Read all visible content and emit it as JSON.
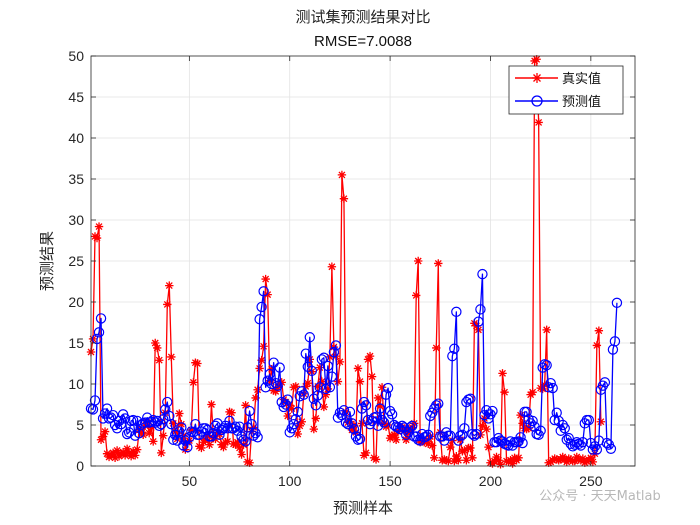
{
  "watermark": "公众号 · 天天Matlab",
  "chart_data": {
    "type": "line",
    "title": "测试集预测结果对比",
    "subtitle": "RMSE=7.0088",
    "xlabel": "预测样本",
    "ylabel": "预测结果",
    "xlim": [
      1,
      272
    ],
    "ylim": [
      0,
      50
    ],
    "xticks": [
      50,
      100,
      150,
      200,
      250
    ],
    "yticks": [
      0,
      5,
      10,
      15,
      20,
      25,
      30,
      35,
      40,
      45,
      50
    ],
    "grid": true,
    "legend_position": "top-right",
    "series": [
      {
        "name": "真实值",
        "color": "#ff0000",
        "marker": "asterisk",
        "values": [
          13.9,
          15.5,
          28,
          27.8,
          29.2,
          3.2,
          3.6,
          4.2,
          1.5,
          1.1,
          1.3,
          1.6,
          1.0,
          1.9,
          1.2,
          1.5,
          1.7,
          1.3,
          2.1,
          1.6,
          1.2,
          1.8,
          1.3,
          2.0,
          4.4,
          4.1,
          3.8,
          4.9,
          5.3,
          4.0,
          4.7,
          3.0,
          15.0,
          14.4,
          12.9,
          1.6,
          3.7,
          6.5,
          19.7,
          22.0,
          13.3,
          5.2,
          4.2,
          3.3,
          6.4,
          5.1,
          3.7,
          2.0,
          2.9,
          3.1,
          4.4,
          10.2,
          12.6,
          12.5,
          2.4,
          2.2,
          2.9,
          3.2,
          3.7,
          2.6,
          7.5,
          3.4,
          3.3,
          4.1,
          3.9,
          2.6,
          2.3,
          2.9,
          3.0,
          6.6,
          6.5,
          2.7,
          2.6,
          2.9,
          2.2,
          1.4,
          2.6,
          7.4,
          0.5,
          0.4,
          4.2,
          4.7,
          8.3,
          9.3,
          11.9,
          12.9,
          14.6,
          22.8,
          20.9,
          10.4,
          11.8,
          9.2,
          9.1,
          9.6,
          10.0,
          10.2,
          8.1,
          7.8,
          6.1,
          7.4,
          7.0,
          9.6,
          9.7,
          3.9,
          4.9,
          5.4,
          8.8,
          9.7,
          10.1,
          13.0,
          11.5,
          4.5,
          5.8,
          9.7,
          12.0,
          10.3,
          7.2,
          8.7,
          9.4,
          13.3,
          24.3,
          14.5,
          13.4,
          10.3,
          12.7,
          35.5,
          32.6,
          6.6,
          5.3,
          5.4,
          4.4,
          5.0,
          4.1,
          11.9,
          10.3,
          5.2,
          1.3,
          1.6,
          13.0,
          13.4,
          10.9,
          1.0,
          0.8,
          8.3,
          7.3,
          9.6,
          5.2,
          4.8,
          5.0,
          3.4,
          3.7,
          3.8,
          3.2,
          4.2,
          4.8,
          4.7,
          4.5,
          3.2,
          4.0,
          4.4,
          4.7,
          5.2,
          20.8,
          25.0,
          2.9,
          3.0,
          2.9,
          3.2,
          2.7,
          3.6,
          2.5,
          1.0,
          14.4,
          24.7,
          4.1,
          0.7,
          0.8,
          0.7,
          0.6,
          2.3,
          3.1,
          0.6,
          1.2,
          0.7,
          3.2,
          1.8,
          1.9,
          0.7,
          2.2,
          2.2,
          1.0,
          17.4,
          17.1,
          16.6,
          3.8,
          4.9,
          5.8,
          4.5,
          2.3,
          0.4,
          0.3,
          0.6,
          1.1,
          0.7,
          0.2,
          11.3,
          9.0,
          0.6,
          0.5,
          0.7,
          0.3,
          1.0,
          0.7,
          1.0,
          6.2,
          5.2,
          4.6,
          4.5,
          4.6,
          8.7,
          9.0,
          49.4,
          49.6,
          41.9,
          9.5,
          9.4,
          9.9,
          16.6,
          0.4,
          0.5,
          0.7,
          0.9,
          0.8,
          0.7,
          0.8,
          1.1,
          0.8,
          0.5,
          0.9,
          0.8,
          0.6,
          0.6,
          1.1,
          0.8,
          0.7,
          0.9,
          0.4,
          0.6,
          0.7,
          1.0,
          0.5,
          1.5,
          14.7,
          16.5,
          5.4
        ]
      },
      {
        "name": "预测值",
        "color": "#0000ff",
        "marker": "circle",
        "values": [
          7.0,
          6.9,
          8.0,
          15.5,
          16.3,
          18.0,
          5.8,
          6.4,
          7.0,
          5.8,
          5.9,
          6.2,
          5.0,
          4.6,
          5.5,
          5.1,
          6.3,
          5.8,
          3.9,
          4.1,
          5.5,
          5.6,
          3.7,
          5.5,
          4.0,
          5.0,
          5.2,
          5.3,
          5.9,
          5.3,
          5.4,
          5.6,
          5.3,
          5.5,
          4.9,
          5.1,
          5.7,
          6.9,
          7.8,
          6.1,
          5.1,
          3.2,
          3.8,
          3.1,
          4.2,
          4.7,
          2.5,
          3.1,
          2.3,
          3.5,
          4.2,
          4.1,
          5.1,
          3.8,
          3.8,
          4.2,
          4.6,
          4.6,
          4.4,
          3.6,
          3.6,
          4.0,
          4.9,
          5.2,
          3.8,
          4.4,
          4.6,
          4.9,
          4.6,
          5.5,
          4.6,
          4.6,
          4.8,
          4.3,
          4.8,
          3.6,
          3.2,
          3.0,
          4.7,
          6.7,
          5.1,
          3.7,
          4.0,
          3.5,
          17.9,
          19.4,
          21.3,
          9.6,
          10.4,
          11.2,
          10.0,
          12.6,
          10.1,
          9.8,
          12.0,
          7.8,
          7.2,
          7.5,
          8.1,
          4.1,
          4.6,
          5.1,
          5.7,
          6.6,
          8.5,
          9.1,
          8.7,
          13.7,
          12.1,
          15.7,
          11.6,
          8.2,
          7.4,
          8.6,
          9.6,
          13.0,
          13.2,
          9.4,
          12.2,
          9.6,
          10.9,
          13.9,
          14.7,
          5.9,
          6.5,
          6.2,
          6.8,
          5.3,
          5.1,
          6.6,
          5.2,
          4.5,
          3.6,
          3.2,
          3.3,
          7.0,
          7.8,
          7.4,
          5.6,
          5.1,
          5.5,
          5.9,
          6.0,
          4.9,
          7.0,
          5.6,
          5.3,
          8.7,
          9.5,
          6.7,
          6.3,
          5.0,
          4.8,
          4.7,
          4.5,
          4.9,
          4.7,
          3.8,
          4.1,
          4.7,
          4.9,
          3.6,
          3.6,
          3.2,
          3.1,
          3.9,
          3.5,
          3.6,
          3.8,
          6.1,
          6.5,
          7.0,
          7.4,
          7.6,
          3.6,
          3.6,
          3.1,
          4.1,
          3.7,
          3.7,
          13.4,
          14.3,
          18.8,
          3.1,
          3.7,
          3.8,
          4.6,
          7.8,
          8.1,
          8.2,
          3.9,
          3.7,
          3.9,
          17.6,
          19.1,
          23.4,
          6.2,
          6.8,
          5.8,
          6.3,
          6.7,
          2.9,
          2.9,
          3.4,
          3.1,
          3.0,
          2.7,
          2.6,
          2.5,
          3.0,
          2.5,
          2.9,
          2.9,
          3.0,
          3.5,
          2.8,
          6.6,
          6.6,
          5.7,
          5.2,
          5.5,
          4.8,
          3.9,
          3.8,
          4.3,
          12.0,
          12.4,
          12.3,
          9.6,
          10.1,
          9.5,
          5.6,
          6.5,
          5.5,
          4.3,
          5.0,
          4.6,
          3.2,
          3.4,
          2.7,
          2.4,
          2.6,
          2.9,
          2.7,
          2.5,
          2.9,
          5.2,
          5.6,
          5.6,
          2.8,
          2.0,
          2.4,
          2.0,
          3.1,
          9.3,
          9.8,
          10.2,
          2.8,
          2.6,
          2.1,
          14.2,
          15.2,
          19.9
        ]
      }
    ]
  }
}
